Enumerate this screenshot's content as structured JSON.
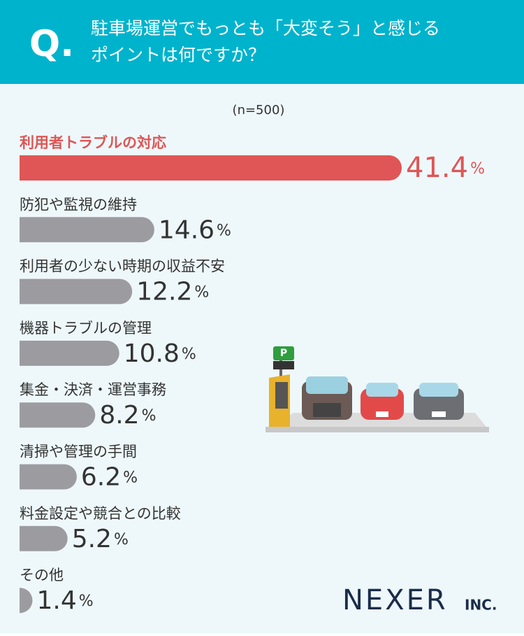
{
  "chart_data": {
    "type": "bar",
    "question_label": "Q.",
    "title_lines": [
      "駐車場運営でもっとも「大変そう」と感じる",
      "ポイントは何ですか？"
    ],
    "subtitle": "(n=500)",
    "categories": [
      "利用者トラブルの対応",
      "防犯や監視の維持",
      "利用者の少ない時期の収益不安",
      "機器トラブルの管理",
      "集金・決済・運営事務",
      "清掃や管理の手間",
      "料金設定や競合との比較",
      "その他"
    ],
    "values": [
      41.4,
      14.6,
      12.2,
      10.8,
      8.2,
      6.2,
      5.2,
      1.4
    ],
    "unit": "%",
    "colors": [
      "#e05555",
      "#9c9ca0",
      "#9c9ca0",
      "#9c9ca0",
      "#9c9ca0",
      "#9c9ca0",
      "#9c9ca0",
      "#9c9ca0"
    ],
    "xlim": [
      0,
      41.4
    ],
    "logo": "NEXER",
    "logo_suffix": "INC."
  }
}
